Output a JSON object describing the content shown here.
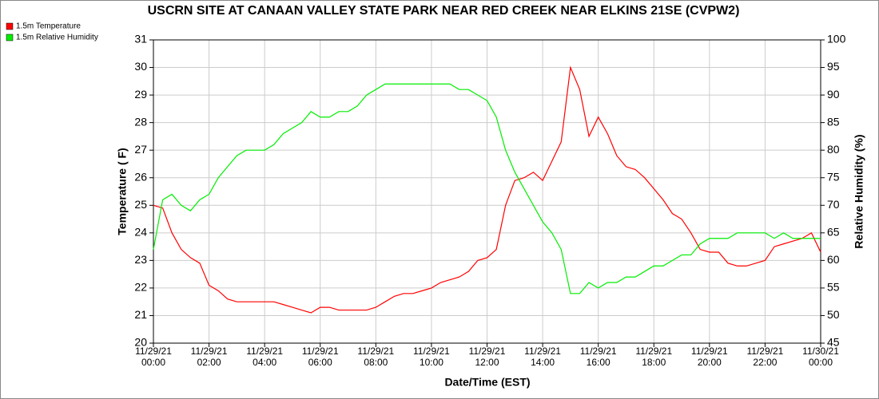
{
  "chart_data": {
    "type": "line",
    "title": "USCRN SITE AT CANAAN VALLEY STATE PARK NEAR RED CREEK NEAR ELKINS 21SE (CVPW2)",
    "x_label": "Date/Time (EST)",
    "y_label": "Temperature ( F)",
    "y2_label": "Relative Humidity (%)",
    "x": [
      "11/29/21 00:00",
      "11/29/21 00:20",
      "11/29/21 00:40",
      "11/29/21 01:00",
      "11/29/21 01:20",
      "11/29/21 01:40",
      "11/29/21 02:00",
      "11/29/21 02:20",
      "11/29/21 02:40",
      "11/29/21 03:00",
      "11/29/21 03:20",
      "11/29/21 03:40",
      "11/29/21 04:00",
      "11/29/21 04:20",
      "11/29/21 04:40",
      "11/29/21 05:00",
      "11/29/21 05:20",
      "11/29/21 05:40",
      "11/29/21 06:00",
      "11/29/21 06:20",
      "11/29/21 06:40",
      "11/29/21 07:00",
      "11/29/21 07:20",
      "11/29/21 07:40",
      "11/29/21 08:00",
      "11/29/21 08:20",
      "11/29/21 08:40",
      "11/29/21 09:00",
      "11/29/21 09:20",
      "11/29/21 09:40",
      "11/29/21 10:00",
      "11/29/21 10:20",
      "11/29/21 10:40",
      "11/29/21 11:00",
      "11/29/21 11:20",
      "11/29/21 11:40",
      "11/29/21 12:00",
      "11/29/21 12:20",
      "11/29/21 12:40",
      "11/29/21 13:00",
      "11/29/21 13:20",
      "11/29/21 13:40",
      "11/29/21 14:00",
      "11/29/21 14:20",
      "11/29/21 14:40",
      "11/29/21 15:00",
      "11/29/21 15:20",
      "11/29/21 15:40",
      "11/29/21 16:00",
      "11/29/21 16:20",
      "11/29/21 16:40",
      "11/29/21 17:00",
      "11/29/21 17:20",
      "11/29/21 17:40",
      "11/29/21 18:00",
      "11/29/21 18:20",
      "11/29/21 18:40",
      "11/29/21 19:00",
      "11/29/21 19:20",
      "11/29/21 19:40",
      "11/29/21 20:00",
      "11/29/21 20:20",
      "11/29/21 20:40",
      "11/29/21 21:00",
      "11/29/21 21:20",
      "11/29/21 21:40",
      "11/29/21 22:00",
      "11/29/21 22:20",
      "11/29/21 22:40",
      "11/29/21 23:00",
      "11/29/21 23:20",
      "11/29/21 23:40",
      "11/30/21 00:00"
    ],
    "series": [
      {
        "name": "1.5m Temperature",
        "color": "#ff0000",
        "values": [
          25.0,
          24.9,
          24.0,
          23.4,
          23.1,
          22.9,
          22.1,
          21.9,
          21.6,
          21.5,
          21.5,
          21.5,
          21.5,
          21.5,
          21.4,
          21.3,
          21.2,
          21.1,
          21.3,
          21.3,
          21.2,
          21.2,
          21.2,
          21.2,
          21.3,
          21.5,
          21.7,
          21.8,
          21.8,
          21.9,
          22.0,
          22.2,
          22.3,
          22.4,
          22.6,
          23.0,
          23.1,
          23.4,
          25.0,
          25.9,
          26.0,
          26.2,
          25.9,
          26.6,
          27.3,
          30.0,
          29.2,
          27.5,
          28.2,
          27.6,
          26.8,
          26.4,
          26.3,
          26.0,
          25.6,
          25.2,
          24.7,
          24.5,
          24.0,
          23.4,
          23.3,
          23.3,
          22.9,
          22.8,
          22.8,
          22.9,
          23.0,
          23.5,
          23.6,
          23.7,
          23.8,
          24.0,
          23.3
        ]
      },
      {
        "name": "1.5m Relative Humidity",
        "color": "#00ee00",
        "axis": "y2",
        "values": [
          62,
          71,
          72,
          70,
          69,
          71,
          72,
          75,
          77,
          79,
          80,
          80,
          80,
          81,
          83,
          84,
          85,
          87,
          86,
          86,
          87,
          87,
          88,
          90,
          91,
          92,
          92,
          92,
          92,
          92,
          92,
          92,
          92,
          91,
          91,
          90,
          89,
          86,
          80,
          76,
          73,
          70,
          67,
          65,
          62,
          54,
          54,
          56,
          55,
          56,
          56,
          57,
          57,
          58,
          59,
          59,
          60,
          61,
          61,
          63,
          64,
          64,
          64,
          65,
          65,
          65,
          65,
          64,
          65,
          64,
          64,
          64,
          64
        ]
      }
    ],
    "xlim": [
      "11/29/21 00:00",
      "11/30/21 00:00"
    ],
    "xticks": [
      "11/29/21 00:00",
      "11/29/21 02:00",
      "11/29/21 04:00",
      "11/29/21 06:00",
      "11/29/21 08:00",
      "11/29/21 10:00",
      "11/29/21 12:00",
      "11/29/21 14:00",
      "11/29/21 16:00",
      "11/29/21 18:00",
      "11/29/21 20:00",
      "11/29/21 22:00",
      "11/30/21 00:00"
    ],
    "ylim": [
      20,
      31
    ],
    "yticks": [
      20,
      21,
      22,
      23,
      24,
      25,
      26,
      27,
      28,
      29,
      30,
      31
    ],
    "y2lim": [
      45,
      100
    ],
    "y2ticks": [
      45,
      50,
      55,
      60,
      65,
      70,
      75,
      80,
      85,
      90,
      95,
      100
    ],
    "grid": true,
    "legend": "top-left"
  }
}
